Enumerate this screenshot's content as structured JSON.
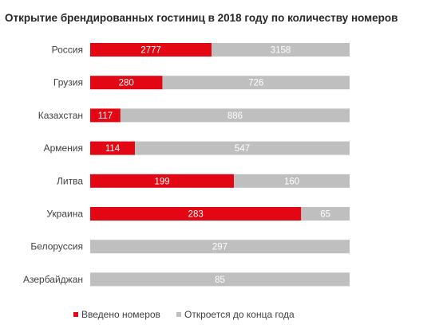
{
  "chart_data": {
    "type": "bar",
    "orientation": "horizontal",
    "stacked": "100%",
    "title": "Открытие брендированных гостиниц в 2018 году по количеству номеров",
    "categories": [
      "Россия",
      "Грузия",
      "Казахстан",
      "Армения",
      "Литва",
      "Украина",
      "Белоруссия",
      "Азербайджан"
    ],
    "series": [
      {
        "name": "Введено номеров",
        "color": "#e30613",
        "values": [
          2777,
          280,
          117,
          114,
          199,
          283,
          0,
          0
        ],
        "labels": [
          "2777",
          "280",
          "117",
          "114",
          "199",
          "283",
          "",
          ""
        ]
      },
      {
        "name": "Откроется до конца года",
        "color": "#bfbfbf",
        "values": [
          3158,
          726,
          886,
          547,
          160,
          65,
          297,
          85
        ],
        "labels": [
          "3158",
          "726",
          "886",
          "547",
          "160",
          "65",
          "297",
          "85"
        ]
      }
    ],
    "grid": false,
    "legend_position": "bottom-left"
  }
}
